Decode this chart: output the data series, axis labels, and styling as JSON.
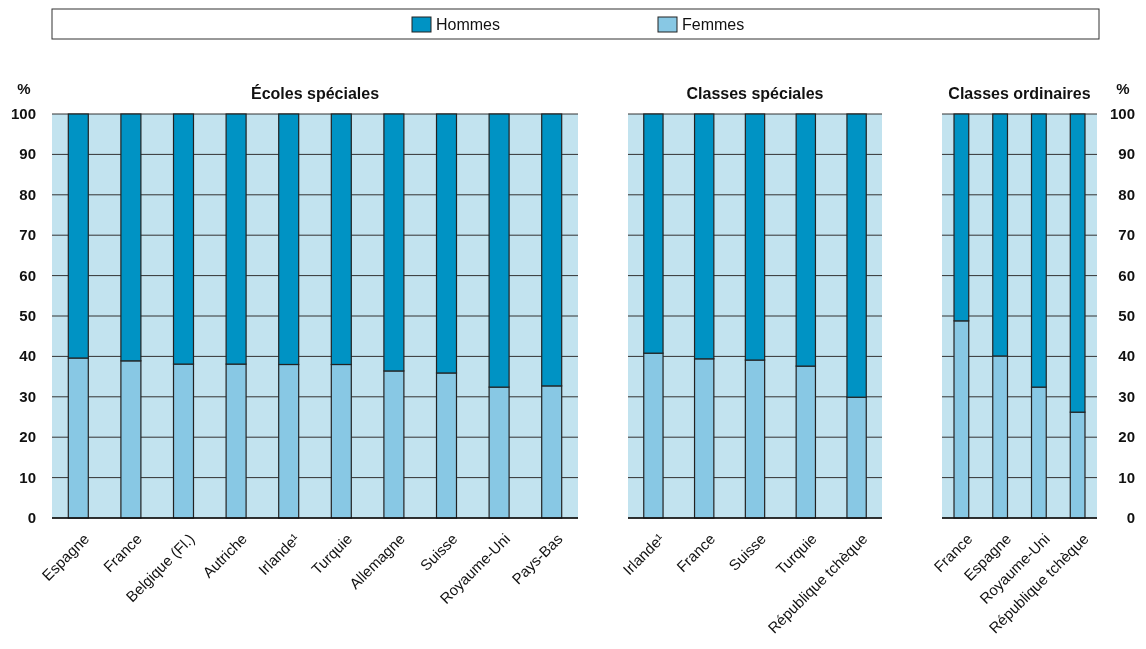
{
  "chart_data": [
    {
      "type": "bar",
      "title": "Écoles spéciales",
      "ylabel": "%",
      "stacked": true,
      "legend": "top",
      "grid": "y",
      "categories": [
        "Espagne",
        "France",
        "Belgique (Fl.)",
        "Autriche",
        "Irlande¹",
        "Turquie",
        "Allemagne",
        "Suisse",
        "Royaume-Uni",
        "Pays-Bas"
      ],
      "ylim": [
        0,
        100
      ],
      "yticks": [
        0,
        10,
        20,
        30,
        40,
        50,
        60,
        70,
        80,
        90,
        100
      ],
      "series": [
        {
          "name": "Femmes",
          "color": "#88c8e4",
          "values": [
            39.6,
            38.9,
            38.1,
            38.1,
            38,
            38,
            36.4,
            35.9,
            32.4,
            32.7
          ]
        },
        {
          "name": "Hommes",
          "color": "#0093c4",
          "values": [
            60.4,
            61.1,
            61.9,
            61.9,
            62,
            62,
            63.6,
            64.1,
            67.6,
            67.3
          ]
        }
      ]
    },
    {
      "type": "bar",
      "title": "Classes spéciales",
      "stacked": true,
      "grid": "y",
      "tick_labels": "x",
      "categories": [
        "Irlande¹",
        "France",
        "Suisse",
        "Turquie",
        "République tchèque"
      ],
      "ylim": [
        0,
        100
      ],
      "yticks": [
        0,
        10,
        20,
        30,
        40,
        50,
        60,
        70,
        80,
        90,
        100
      ],
      "series": [
        {
          "color": "#88c8e4",
          "values": [
            40.8,
            39.4,
            39.1,
            37.6,
            29.9
          ]
        },
        {
          "color": "#0093c4",
          "values": [
            59.2,
            60.6,
            60.9,
            62.4,
            70.1
          ]
        }
      ]
    },
    {
      "type": "bar",
      "title": "Classes ordinaires",
      "y2label": "%",
      "stacked": true,
      "grid": "y",
      "categories": [
        "France",
        "Espagne",
        "Royaume-Uni",
        "République tchèque"
      ],
      "y2lim": [
        0,
        100
      ],
      "y2ticks": [
        0,
        10,
        20,
        30,
        40,
        50,
        60,
        70,
        80,
        90,
        100
      ],
      "series": [
        {
          "color": "#88c8e4",
          "axis": "y2",
          "values": [
            48.8,
            40.1,
            32.4,
            26.2
          ]
        },
        {
          "color": "#0093c4",
          "axis": "y2",
          "values": [
            51.2,
            59.9,
            67.6,
            73.8
          ]
        }
      ]
    }
  ]
}
